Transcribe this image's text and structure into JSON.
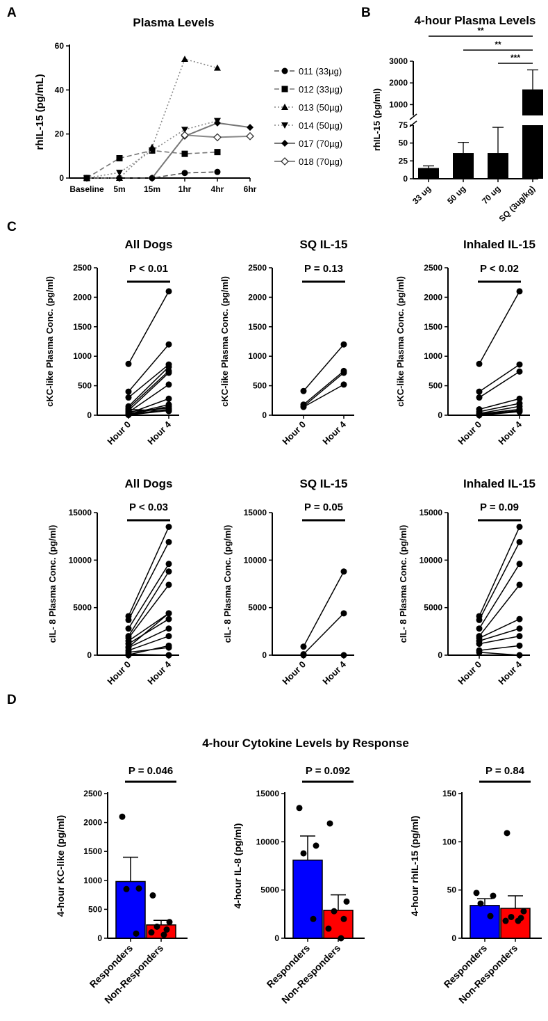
{
  "panel_letters": [
    "A",
    "B",
    "C",
    "D"
  ],
  "section_titles": {
    "D": "4-hour Cytokine Levels by Response"
  },
  "chart_data": [
    {
      "id": "A",
      "type": "line",
      "title": "Plasma Levels",
      "ylabel": "rhIL-15 (pg/mL)",
      "xlabel": "",
      "categories": [
        "Baseline",
        "5m",
        "15m",
        "1hr",
        "4hr",
        "6hr"
      ],
      "ylim": [
        0,
        60
      ],
      "yticks": [
        0,
        20,
        40,
        60
      ],
      "legend_position": "right",
      "series": [
        {
          "name": "011 (33µg)",
          "values": [
            0,
            0,
            0,
            2.3,
            2.8,
            null
          ],
          "color": "#555555",
          "dash": "dashed",
          "marker": "circle"
        },
        {
          "name": "012 (33µg)",
          "values": [
            0,
            9,
            12.5,
            11,
            11.8,
            null
          ],
          "color": "#777777",
          "dash": "dashed",
          "marker": "square"
        },
        {
          "name": "013 (50µg)",
          "values": [
            0,
            0,
            14,
            54,
            50,
            null
          ],
          "color": "#888888",
          "dash": "dotted",
          "marker": "triangle-up"
        },
        {
          "name": "014 (50µg)",
          "values": [
            0,
            2.5,
            12.5,
            22,
            26,
            null
          ],
          "color": "#888888",
          "dash": "dotted",
          "marker": "triangle-down"
        },
        {
          "name": "017 (70µg)",
          "values": [
            null,
            null,
            0,
            19,
            25,
            23
          ],
          "color": "#777777",
          "dash": "solid",
          "marker": "diamond"
        },
        {
          "name": "018 (70µg)",
          "values": [
            null,
            null,
            null,
            19.5,
            18.5,
            19
          ],
          "color": "#888888",
          "dash": "solid",
          "marker": "diamond-open"
        }
      ]
    },
    {
      "id": "B",
      "type": "bar",
      "title": "4-hour Plasma Levels",
      "ylabel": "rhIL-15 (pg/ml)",
      "categories": [
        "33 ug",
        "50 ug",
        "70 ug",
        "SQ (3ug/kg)"
      ],
      "values": [
        15,
        36,
        36,
        1700
      ],
      "error": [
        3,
        15,
        36,
        900
      ],
      "axis_break": {
        "lower": [
          0,
          75
        ],
        "upper": [
          500,
          3000
        ]
      },
      "yticks_lower": [
        0,
        25,
        50,
        75
      ],
      "yticks_upper": [
        1000,
        2000,
        3000
      ],
      "significance": [
        {
          "from": 0,
          "to": 3,
          "label": "**"
        },
        {
          "from": 1,
          "to": 3,
          "label": "**"
        },
        {
          "from": 2,
          "to": 3,
          "label": "***"
        }
      ]
    },
    {
      "id": "C1",
      "type": "line",
      "subtype": "paired",
      "title": "All Dogs",
      "pvalue": "P < 0.01",
      "ylabel": "cKC-like Plasma Conc. (pg/ml)",
      "categories": [
        "Hour 0",
        "Hour 4"
      ],
      "ylim": [
        0,
        2500
      ],
      "yticks": [
        0,
        500,
        1000,
        1500,
        2000,
        2500
      ],
      "pairs": [
        [
          870,
          2100
        ],
        [
          400,
          1200
        ],
        [
          300,
          860
        ],
        [
          150,
          820
        ],
        [
          120,
          750
        ],
        [
          80,
          720
        ],
        [
          50,
          520
        ],
        [
          30,
          280
        ],
        [
          20,
          180
        ],
        [
          10,
          150
        ],
        [
          10,
          100
        ],
        [
          5,
          80
        ],
        [
          100,
          70
        ],
        [
          60,
          120
        ]
      ]
    },
    {
      "id": "C2",
      "type": "line",
      "subtype": "paired",
      "title": "SQ IL-15",
      "pvalue": "P = 0.13",
      "ylabel": "cKC-like Plasma Conc. (pg/ml)",
      "categories": [
        "Hour 0",
        "Hour 4"
      ],
      "ylim": [
        0,
        2500
      ],
      "yticks": [
        0,
        500,
        1000,
        1500,
        2000,
        2500
      ],
      "pairs": [
        [
          410,
          1200
        ],
        [
          180,
          750
        ],
        [
          150,
          720
        ],
        [
          140,
          520
        ]
      ]
    },
    {
      "id": "C3",
      "type": "line",
      "subtype": "paired",
      "title": "Inhaled IL-15",
      "pvalue": "P < 0.02",
      "ylabel": "cKC-like Plasma Conc. (pg/ml)",
      "categories": [
        "Hour 0",
        "Hour 4"
      ],
      "ylim": [
        0,
        2500
      ],
      "yticks": [
        0,
        500,
        1000,
        1500,
        2000,
        2500
      ],
      "pairs": [
        [
          870,
          2100
        ],
        [
          400,
          860
        ],
        [
          300,
          740
        ],
        [
          100,
          280
        ],
        [
          60,
          200
        ],
        [
          30,
          150
        ],
        [
          20,
          100
        ],
        [
          10,
          80
        ],
        [
          5,
          70
        ],
        [
          0,
          60
        ]
      ]
    },
    {
      "id": "C4",
      "type": "line",
      "subtype": "paired",
      "title": "All Dogs",
      "pvalue": "P < 0.03",
      "ylabel": "cIL- 8 Plasma Conc. (pg/ml)",
      "categories": [
        "Hour 0",
        "Hour 4"
      ],
      "ylim": [
        0,
        15000
      ],
      "yticks": [
        0,
        5000,
        10000,
        15000
      ],
      "pairs": [
        [
          4100,
          13500
        ],
        [
          3700,
          11900
        ],
        [
          2800,
          9600
        ],
        [
          2000,
          8800
        ],
        [
          1800,
          7400
        ],
        [
          1500,
          4400
        ],
        [
          1200,
          3800
        ],
        [
          800,
          2800
        ],
        [
          500,
          2000
        ],
        [
          300,
          800
        ],
        [
          100,
          0
        ],
        [
          50,
          1000
        ],
        [
          850,
          4400
        ],
        [
          0,
          0
        ]
      ]
    },
    {
      "id": "C5",
      "type": "line",
      "subtype": "paired",
      "title": "SQ IL-15",
      "pvalue": "P = 0.05",
      "ylabel": "cIL- 8 Plasma Conc. (pg/ml)",
      "categories": [
        "Hour 0",
        "Hour 4"
      ],
      "ylim": [
        0,
        15000
      ],
      "yticks": [
        0,
        5000,
        10000,
        15000
      ],
      "pairs": [
        [
          900,
          8800
        ],
        [
          100,
          4400
        ],
        [
          0,
          0
        ]
      ]
    },
    {
      "id": "C6",
      "type": "line",
      "subtype": "paired",
      "title": "Inhaled IL-15",
      "pvalue": "P = 0.09",
      "ylabel": "cIL- 8 Plasma Conc. (pg/ml)",
      "categories": [
        "Hour 0",
        "Hour 4"
      ],
      "ylim": [
        0,
        15000
      ],
      "yticks": [
        0,
        5000,
        10000,
        15000
      ],
      "pairs": [
        [
          4100,
          13500
        ],
        [
          3700,
          11900
        ],
        [
          2800,
          9600
        ],
        [
          2000,
          7400
        ],
        [
          1800,
          3800
        ],
        [
          1500,
          2800
        ],
        [
          1200,
          2000
        ],
        [
          500,
          1000
        ],
        [
          300,
          0
        ]
      ]
    },
    {
      "id": "D1",
      "type": "bar",
      "pvalue": "P = 0.046",
      "ylabel": "4-hour KC-like (pg/ml)",
      "categories": [
        "Responders",
        "Non-Responders"
      ],
      "colors": [
        "#0000ff",
        "#ff0000"
      ],
      "ylim": [
        0,
        2500
      ],
      "yticks": [
        0,
        500,
        1000,
        1500,
        2000,
        2500
      ],
      "values": [
        980,
        230
      ],
      "error": [
        420,
        80
      ],
      "points": [
        [
          2100,
          860,
          850,
          80
        ],
        [
          740,
          280,
          200,
          150,
          100,
          60
        ]
      ]
    },
    {
      "id": "D2",
      "type": "bar",
      "pvalue": "P = 0.092",
      "ylabel": "4-hour IL-8 (pg/ml)",
      "categories": [
        "Responders",
        "Non-Responders"
      ],
      "colors": [
        "#0000ff",
        "#ff0000"
      ],
      "ylim": [
        0,
        15000
      ],
      "yticks": [
        0,
        5000,
        10000,
        15000
      ],
      "values": [
        8100,
        2900
      ],
      "error": [
        2500,
        1600
      ],
      "points": [
        [
          13500,
          9600,
          8800,
          2000
        ],
        [
          11900,
          3800,
          2800,
          2000,
          1000,
          0
        ]
      ]
    },
    {
      "id": "D3",
      "type": "bar",
      "pvalue": "P = 0.84",
      "ylabel": "4-hour rhIL-15 (pg/ml)",
      "categories": [
        "Responders",
        "Non-Responders"
      ],
      "colors": [
        "#0000ff",
        "#ff0000"
      ],
      "ylim": [
        0,
        150
      ],
      "yticks": [
        0,
        50,
        100,
        150
      ],
      "values": [
        34,
        31
      ],
      "error": [
        7,
        13
      ],
      "points": [
        [
          47,
          44,
          36,
          23
        ],
        [
          109,
          28,
          22,
          21,
          18,
          18
        ]
      ]
    }
  ]
}
